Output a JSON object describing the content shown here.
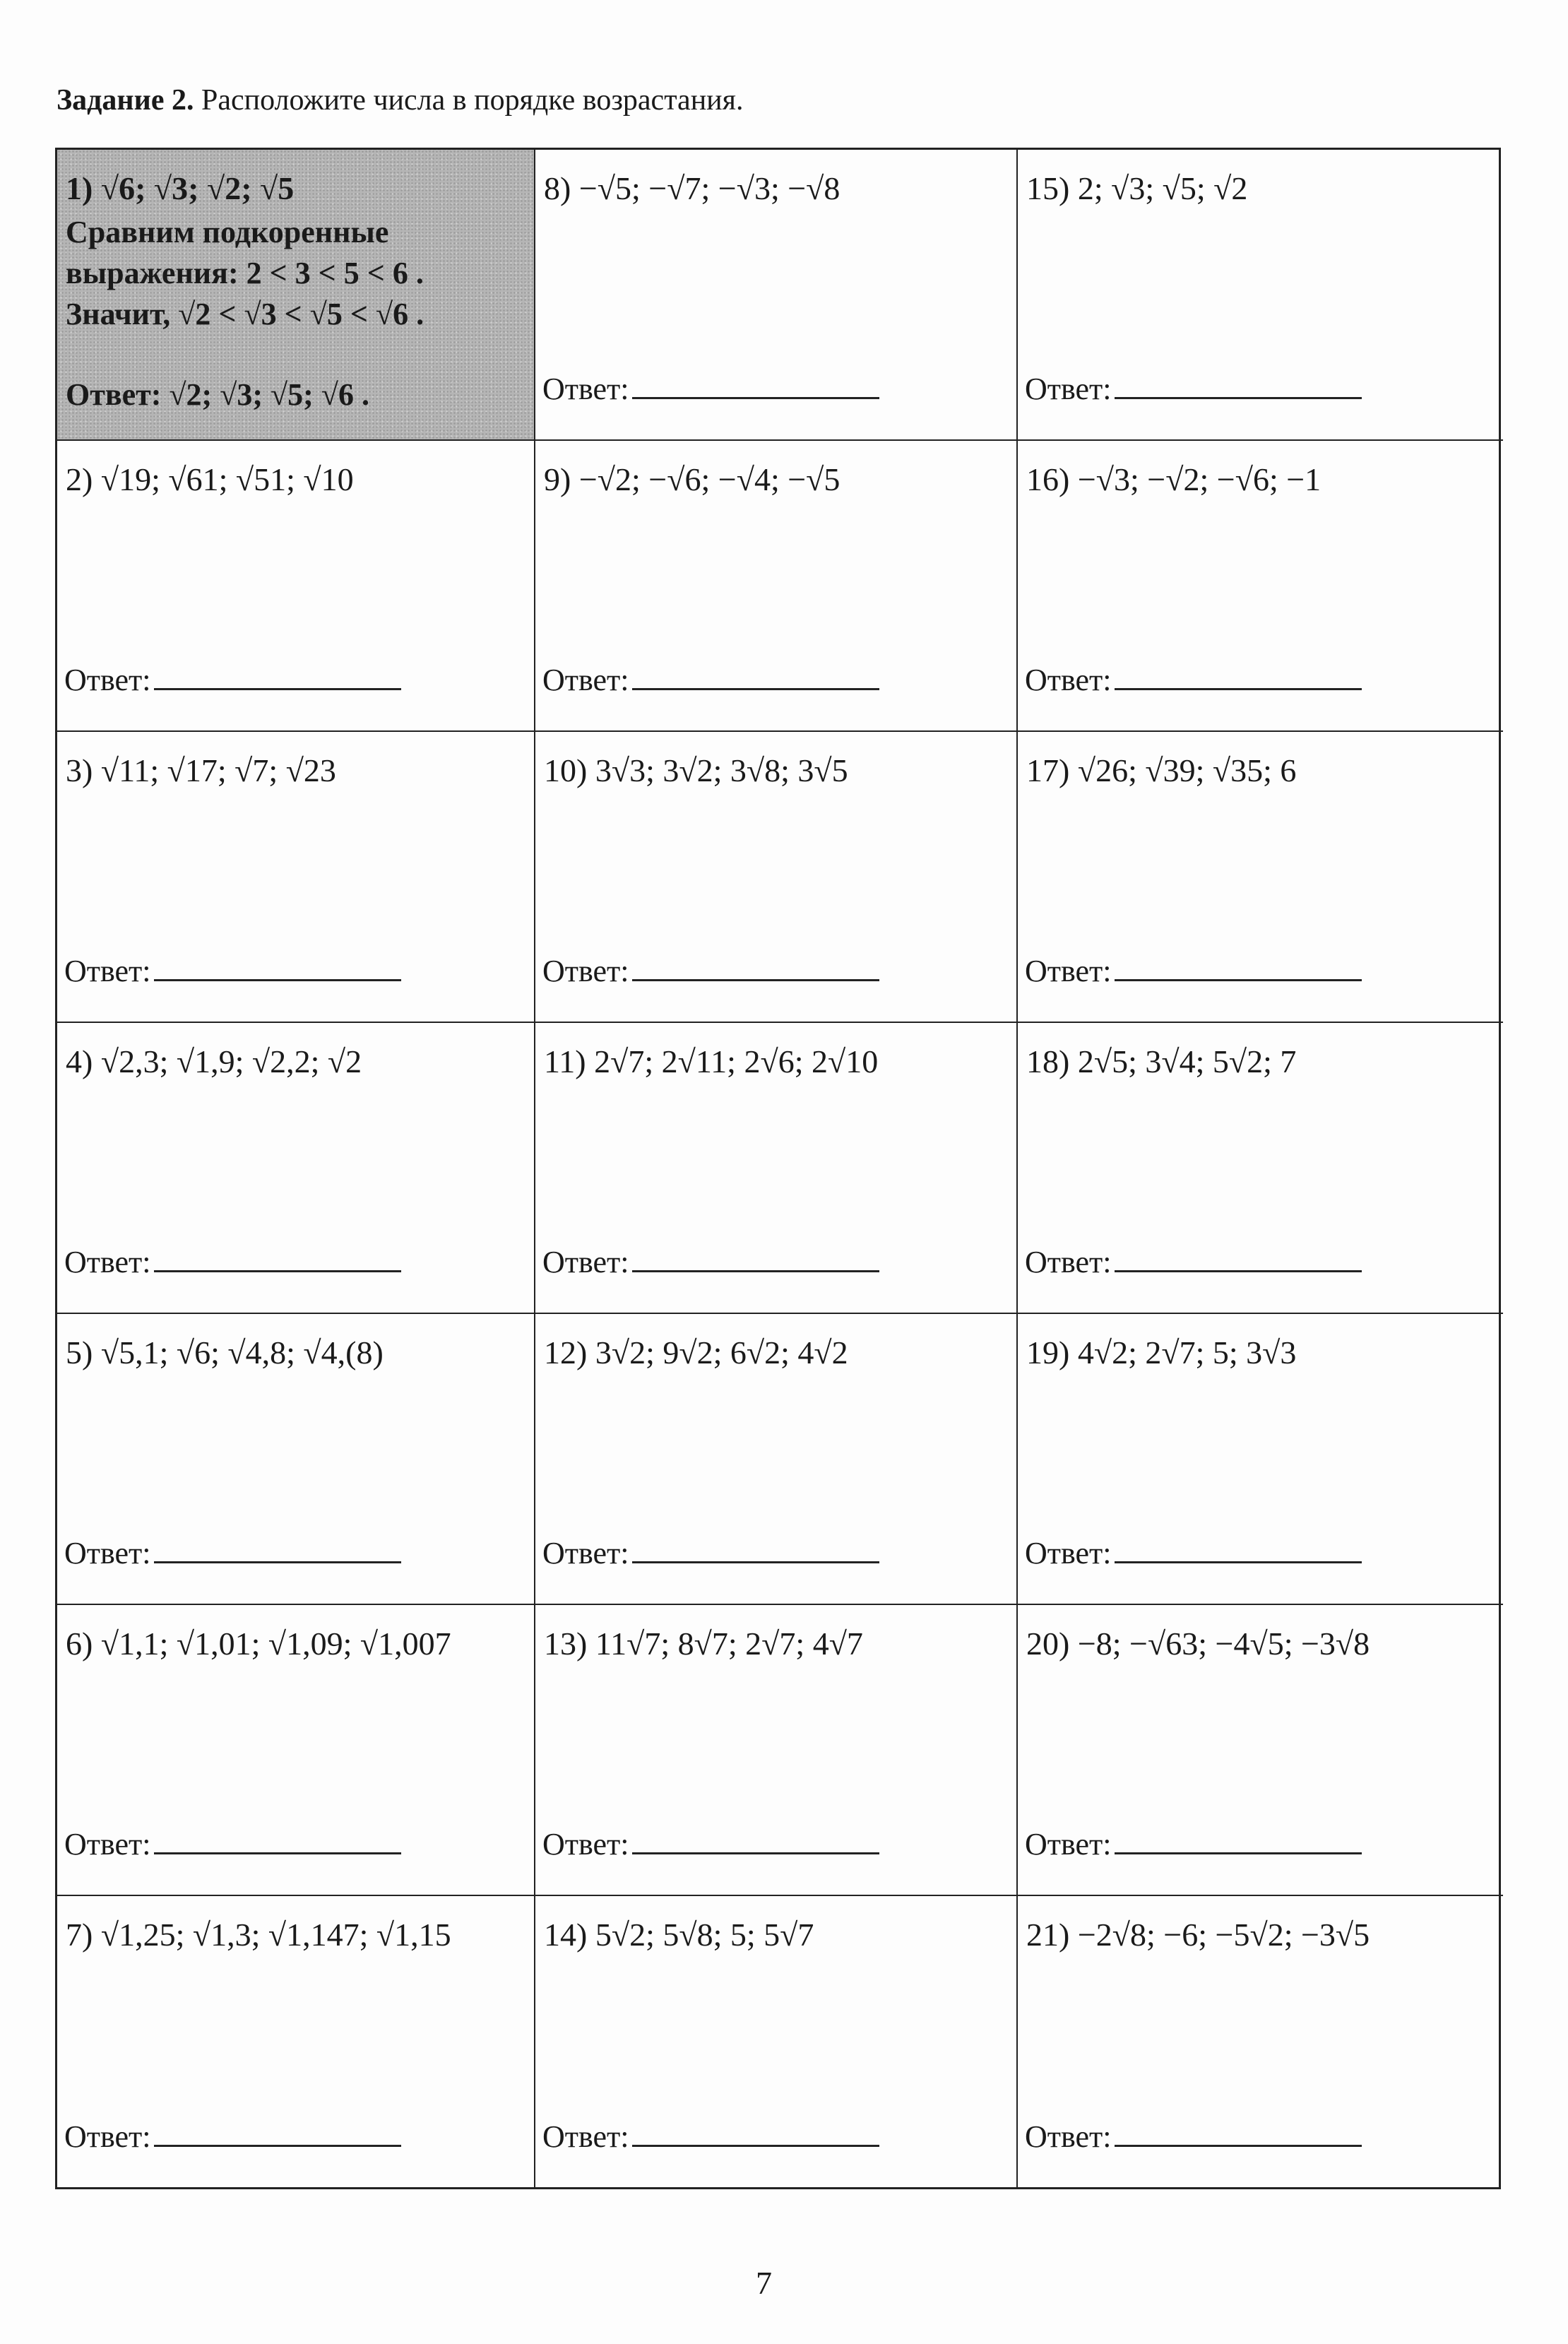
{
  "title": {
    "label": "Задание 2.",
    "text": "Расположите числа в порядке возрастания."
  },
  "answer_label": "Ответ:",
  "example": {
    "expr": "1) √6; √3; √2; √5",
    "line1": "Сравним подкоренные",
    "line2": "выражения: 2 < 3 < 5 < 6 .",
    "line3": "Значит, √2 < √3 < √5 < √6 .",
    "answer": "Ответ: √2; √3; √5; √6 ."
  },
  "tasks": [
    "2) √19; √61; √51; √10",
    "3) √11; √17; √7; √23",
    "4) √2,3; √1,9; √2,2; √2",
    "5) √5,1; √6; √4,8; √4,(8)",
    "6) √1,1; √1,01; √1,09; √1,007",
    "7) √1,25; √1,3; √1,147; √1,15",
    "8) −√5; −√7; −√3; −√8",
    "9) −√2; −√6; −√4; −√5",
    "10) 3√3; 3√2; 3√8; 3√5",
    "11) 2√7; 2√11; 2√6; 2√10",
    "12) 3√2; 9√2; 6√2; 4√2",
    "13) 11√7; 8√7; 2√7; 4√7",
    "14) 5√2; 5√8; 5; 5√7",
    "15) 2; √3; √5; √2",
    "16) −√3; −√2; −√6; −1",
    "17) √26; √39; √35; 6",
    "18) 2√5; 3√4; 5√2; 7",
    "19) 4√2; 2√7; 5; 3√3",
    "20) −8; −√63; −4√5; −3√8",
    "21) −2√8; −6; −5√2; −3√5"
  ],
  "page_number": "7"
}
